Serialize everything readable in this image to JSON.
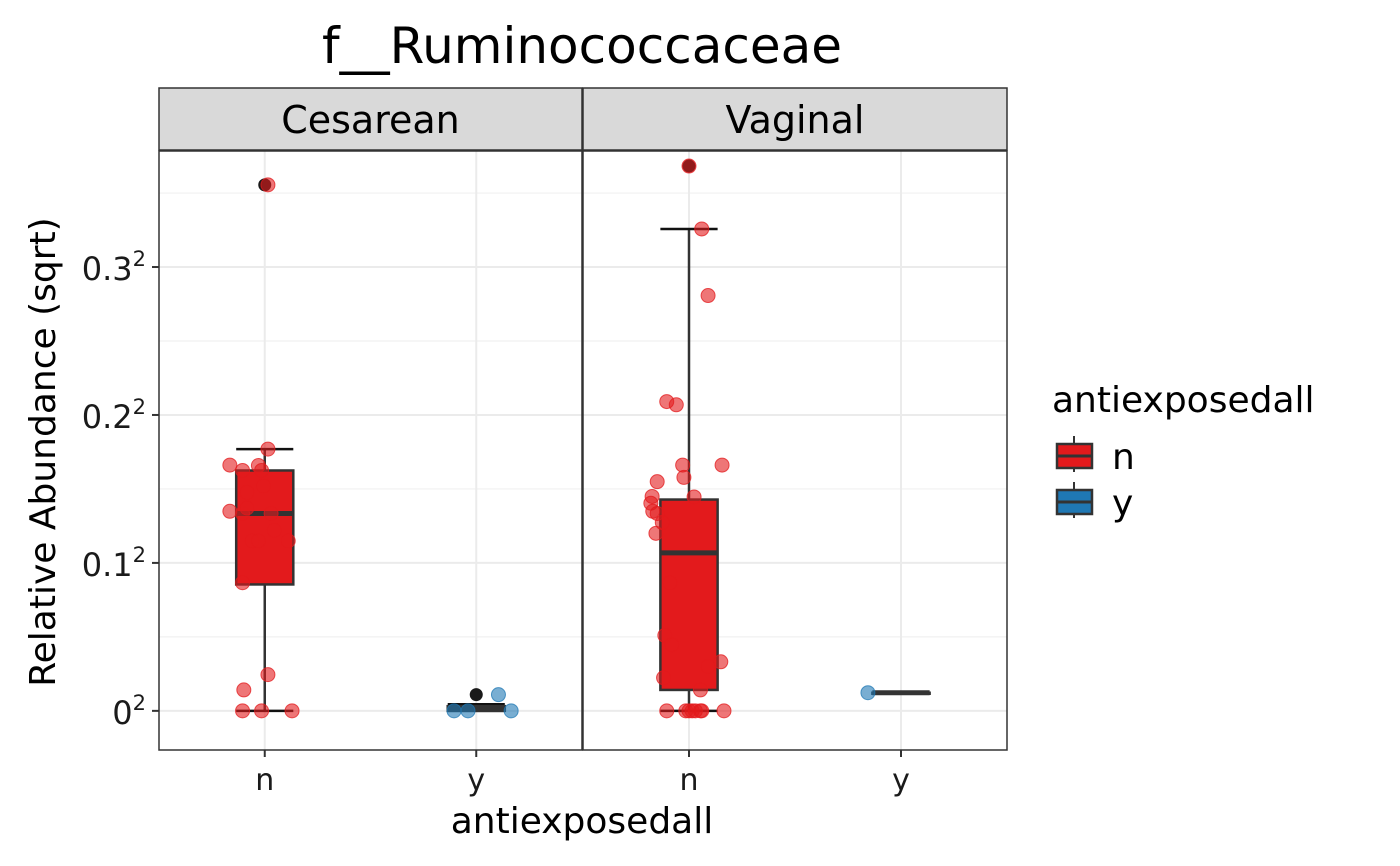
{
  "chart_data": {
    "type": "box",
    "title": "f__Ruminococcaceae",
    "xlabel": "antiexposedall",
    "ylabel": "Relative Abundance (sqrt)",
    "y_scale": "sqrt",
    "ylim": [
      -0.0007,
      0.1432
    ],
    "y_ticks": [
      {
        "value": 0,
        "base": "0",
        "exp": "2"
      },
      {
        "value": 0.01,
        "base": "0.1",
        "exp": "2"
      },
      {
        "value": 0.04,
        "base": "0.2",
        "exp": "2"
      },
      {
        "value": 0.09,
        "base": "0.3",
        "exp": "2"
      }
    ],
    "categories": [
      "n",
      "y"
    ],
    "legend": {
      "title": "antiexposedall",
      "position": "right",
      "items": [
        {
          "label": "n",
          "color": "#E31A1C"
        },
        {
          "label": "y",
          "color": "#1F78B4"
        }
      ]
    },
    "colors": {
      "n": "#E31A1C",
      "y": "#1F78B4",
      "strip": "#d9d9d9",
      "outline": "#333333"
    },
    "panels": [
      {
        "strip": "Cesarean",
        "boxes": [
          {
            "group": "n",
            "min": 0,
            "q1": 0.0073,
            "median": 0.0178,
            "q3": 0.0264,
            "max": 0.0313,
            "outliers": [
              0.1264
            ]
          },
          {
            "group": "y",
            "min": 0,
            "q1": 0,
            "median": 4e-06,
            "q3": 1e-05,
            "max": 2e-05,
            "outliers": [
              0.00012
            ]
          }
        ],
        "points": [
          {
            "group": "n",
            "dx": -0.55,
            "y": 0.0276
          },
          {
            "group": "n",
            "dx": -0.35,
            "y": 0.0264
          },
          {
            "group": "n",
            "dx": -0.28,
            "y": 0.0218
          },
          {
            "group": "n",
            "dx": -0.35,
            "y": 0.0178
          },
          {
            "group": "n",
            "dx": -0.55,
            "y": 0.0182
          },
          {
            "group": "n",
            "dx": -0.28,
            "y": 0.0188
          },
          {
            "group": "n",
            "dx": -0.2,
            "y": 0.0132
          },
          {
            "group": "n",
            "dx": -0.35,
            "y": 0.0075
          },
          {
            "group": "n",
            "dx": -0.33,
            "y": 0.0002
          },
          {
            "group": "n",
            "dx": -0.35,
            "y": 0
          },
          {
            "group": "n",
            "dx": -0.05,
            "y": 0
          },
          {
            "group": "n",
            "dx": 0.05,
            "y": 0.0006
          },
          {
            "group": "n",
            "dx": 0.05,
            "y": 0.0313
          },
          {
            "group": "n",
            "dx": -0.05,
            "y": 0.0264
          },
          {
            "group": "n",
            "dx": -0.1,
            "y": 0.0275
          },
          {
            "group": "n",
            "dx": -0.02,
            "y": 0.0231
          },
          {
            "group": "n",
            "dx": 0.1,
            "y": 0.0178
          },
          {
            "group": "n",
            "dx": 0.15,
            "y": 0.0149
          },
          {
            "group": "n",
            "dx": 0.37,
            "y": 0.0132
          },
          {
            "group": "n",
            "dx": -0.1,
            "y": 0.0132
          },
          {
            "group": "n",
            "dx": 0.05,
            "y": 0.1264
          },
          {
            "group": "n",
            "dx": 0.43,
            "y": 0
          },
          {
            "group": "y",
            "dx": -0.35,
            "y": 0
          },
          {
            "group": "y",
            "dx": -0.13,
            "y": 0
          },
          {
            "group": "y",
            "dx": 0.35,
            "y": 0.00012
          },
          {
            "group": "y",
            "dx": 0.55,
            "y": 0
          }
        ]
      },
      {
        "strip": "Vaginal",
        "boxes": [
          {
            "group": "n",
            "min": 0,
            "q1": 0.0002,
            "median": 0.0114,
            "q3": 0.0204,
            "max": 0.1061,
            "outliers": [
              0.1356
            ]
          },
          {
            "group": "y",
            "min": 0.00015,
            "q1": 0.00015,
            "median": 0.00015,
            "q3": 0.00015,
            "max": 0.00015,
            "outliers": []
          }
        ],
        "points": [
          {
            "group": "n",
            "dx": -0.35,
            "y": 0.0437
          },
          {
            "group": "n",
            "dx": -0.2,
            "y": 0.0428
          },
          {
            "group": "n",
            "dx": -0.1,
            "y": 0.0276
          },
          {
            "group": "n",
            "dx": -0.08,
            "y": 0.0249
          },
          {
            "group": "n",
            "dx": -0.5,
            "y": 0.024
          },
          {
            "group": "n",
            "dx": -0.58,
            "y": 0.021
          },
          {
            "group": "n",
            "dx": -0.6,
            "y": 0.0197
          },
          {
            "group": "n",
            "dx": -0.57,
            "y": 0.0182
          },
          {
            "group": "n",
            "dx": -0.5,
            "y": 0.0178
          },
          {
            "group": "n",
            "dx": -0.42,
            "y": 0.0162
          },
          {
            "group": "n",
            "dx": -0.52,
            "y": 0.0144
          },
          {
            "group": "n",
            "dx": 0.08,
            "y": 0.0209
          },
          {
            "group": "n",
            "dx": -0.3,
            "y": 0.0075
          },
          {
            "group": "n",
            "dx": -0.38,
            "y": 0.0026
          },
          {
            "group": "n",
            "dx": -0.27,
            "y": 0.002
          },
          {
            "group": "n",
            "dx": -0.4,
            "y": 0.0005
          },
          {
            "group": "n",
            "dx": 0.3,
            "y": 0.0009
          },
          {
            "group": "n",
            "dx": 0.5,
            "y": 0.0011
          },
          {
            "group": "n",
            "dx": 0.18,
            "y": 0.0002
          },
          {
            "group": "n",
            "dx": -0.35,
            "y": 0
          },
          {
            "group": "n",
            "dx": -0.05,
            "y": 0
          },
          {
            "group": "n",
            "dx": 0.0,
            "y": 0
          },
          {
            "group": "n",
            "dx": 0.05,
            "y": 0
          },
          {
            "group": "n",
            "dx": 0.1,
            "y": 0
          },
          {
            "group": "n",
            "dx": 0.18,
            "y": 0
          },
          {
            "group": "n",
            "dx": 0.2,
            "y": 0
          },
          {
            "group": "n",
            "dx": 0.55,
            "y": 0
          },
          {
            "group": "n",
            "dx": 0.52,
            "y": 0.0276
          },
          {
            "group": "n",
            "dx": 0.3,
            "y": 0.0788
          },
          {
            "group": "n",
            "dx": 0.2,
            "y": 0.1061
          },
          {
            "group": "n",
            "dx": 0.0,
            "y": 0.1356
          },
          {
            "group": "y",
            "dx": -0.52,
            "y": 0.00015
          }
        ]
      }
    ]
  }
}
